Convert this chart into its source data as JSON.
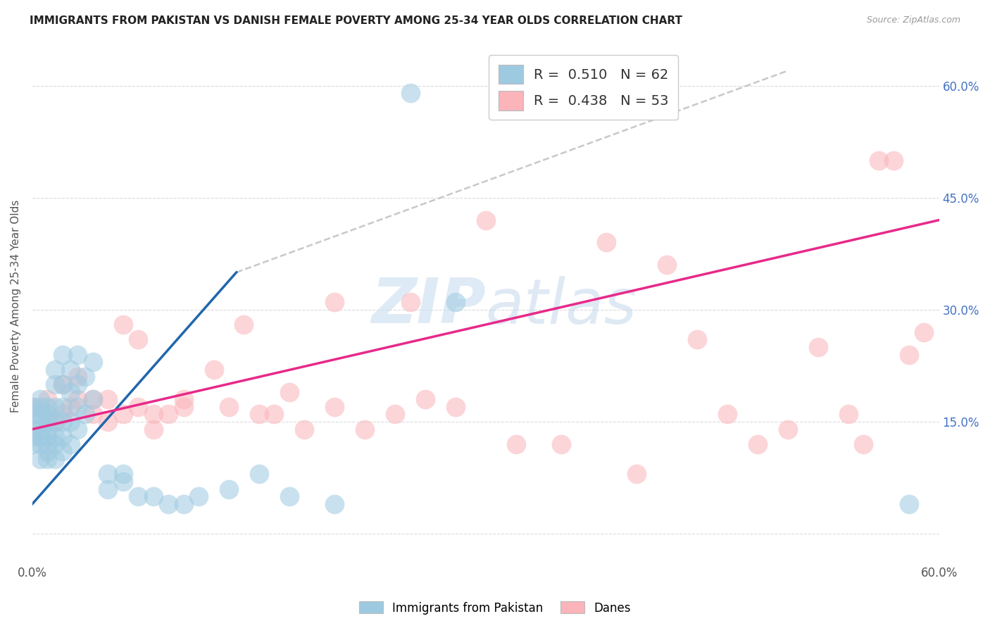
{
  "title": "IMMIGRANTS FROM PAKISTAN VS DANISH FEMALE POVERTY AMONG 25-34 YEAR OLDS CORRELATION CHART",
  "source": "Source: ZipAtlas.com",
  "ylabel": "Female Poverty Among 25-34 Year Olds",
  "xlim": [
    0.0,
    0.6
  ],
  "ylim": [
    -0.04,
    0.65
  ],
  "blue_color": "#9ecae1",
  "pink_color": "#fbb4b9",
  "blue_line_color": "#2166ac",
  "pink_line_color": "#e7298a",
  "gray_line_color": "#bbbbbb",
  "watermark_zip": "ZIP",
  "watermark_atlas": "atlas",
  "background_color": "#ffffff",
  "grid_color": "#cccccc",
  "blue_scatter_x": [
    0.0,
    0.0,
    0.0,
    0.0,
    0.0,
    0.005,
    0.005,
    0.005,
    0.005,
    0.005,
    0.005,
    0.005,
    0.005,
    0.01,
    0.01,
    0.01,
    0.01,
    0.01,
    0.01,
    0.01,
    0.01,
    0.015,
    0.015,
    0.015,
    0.015,
    0.015,
    0.015,
    0.015,
    0.02,
    0.02,
    0.02,
    0.02,
    0.02,
    0.02,
    0.025,
    0.025,
    0.025,
    0.025,
    0.03,
    0.03,
    0.03,
    0.03,
    0.035,
    0.035,
    0.04,
    0.04,
    0.05,
    0.05,
    0.06,
    0.06,
    0.07,
    0.08,
    0.09,
    0.1,
    0.11,
    0.13,
    0.15,
    0.17,
    0.2,
    0.25,
    0.28,
    0.58
  ],
  "blue_scatter_y": [
    0.12,
    0.13,
    0.14,
    0.16,
    0.17,
    0.1,
    0.12,
    0.13,
    0.14,
    0.15,
    0.16,
    0.17,
    0.18,
    0.1,
    0.11,
    0.12,
    0.13,
    0.14,
    0.15,
    0.16,
    0.17,
    0.1,
    0.12,
    0.13,
    0.15,
    0.17,
    0.2,
    0.22,
    0.11,
    0.13,
    0.15,
    0.17,
    0.2,
    0.24,
    0.12,
    0.15,
    0.19,
    0.22,
    0.14,
    0.17,
    0.2,
    0.24,
    0.16,
    0.21,
    0.18,
    0.23,
    0.06,
    0.08,
    0.07,
    0.08,
    0.05,
    0.05,
    0.04,
    0.04,
    0.05,
    0.06,
    0.08,
    0.05,
    0.04,
    0.59,
    0.31,
    0.04
  ],
  "pink_scatter_x": [
    0.0,
    0.01,
    0.01,
    0.015,
    0.02,
    0.02,
    0.025,
    0.03,
    0.03,
    0.04,
    0.04,
    0.05,
    0.05,
    0.06,
    0.06,
    0.07,
    0.07,
    0.08,
    0.08,
    0.09,
    0.1,
    0.1,
    0.12,
    0.13,
    0.14,
    0.15,
    0.16,
    0.17,
    0.18,
    0.2,
    0.2,
    0.22,
    0.24,
    0.25,
    0.26,
    0.28,
    0.3,
    0.32,
    0.35,
    0.38,
    0.4,
    0.42,
    0.44,
    0.46,
    0.48,
    0.5,
    0.52,
    0.54,
    0.55,
    0.56,
    0.57,
    0.58,
    0.59
  ],
  "pink_scatter_y": [
    0.17,
    0.16,
    0.18,
    0.15,
    0.16,
    0.2,
    0.17,
    0.18,
    0.21,
    0.16,
    0.18,
    0.15,
    0.18,
    0.16,
    0.28,
    0.17,
    0.26,
    0.16,
    0.14,
    0.16,
    0.17,
    0.18,
    0.22,
    0.17,
    0.28,
    0.16,
    0.16,
    0.19,
    0.14,
    0.31,
    0.17,
    0.14,
    0.16,
    0.31,
    0.18,
    0.17,
    0.42,
    0.12,
    0.12,
    0.39,
    0.08,
    0.36,
    0.26,
    0.16,
    0.12,
    0.14,
    0.25,
    0.16,
    0.12,
    0.5,
    0.5,
    0.24,
    0.27
  ],
  "blue_line_x0": 0.0,
  "blue_line_x1": 0.135,
  "blue_line_y0": 0.04,
  "blue_line_y1": 0.35,
  "pink_line_x0": 0.0,
  "pink_line_x1": 0.6,
  "pink_line_y0": 0.14,
  "pink_line_y1": 0.42,
  "gray_line_x0": 0.135,
  "gray_line_x1": 0.5,
  "gray_line_y0": 0.35,
  "gray_line_y1": 0.62
}
